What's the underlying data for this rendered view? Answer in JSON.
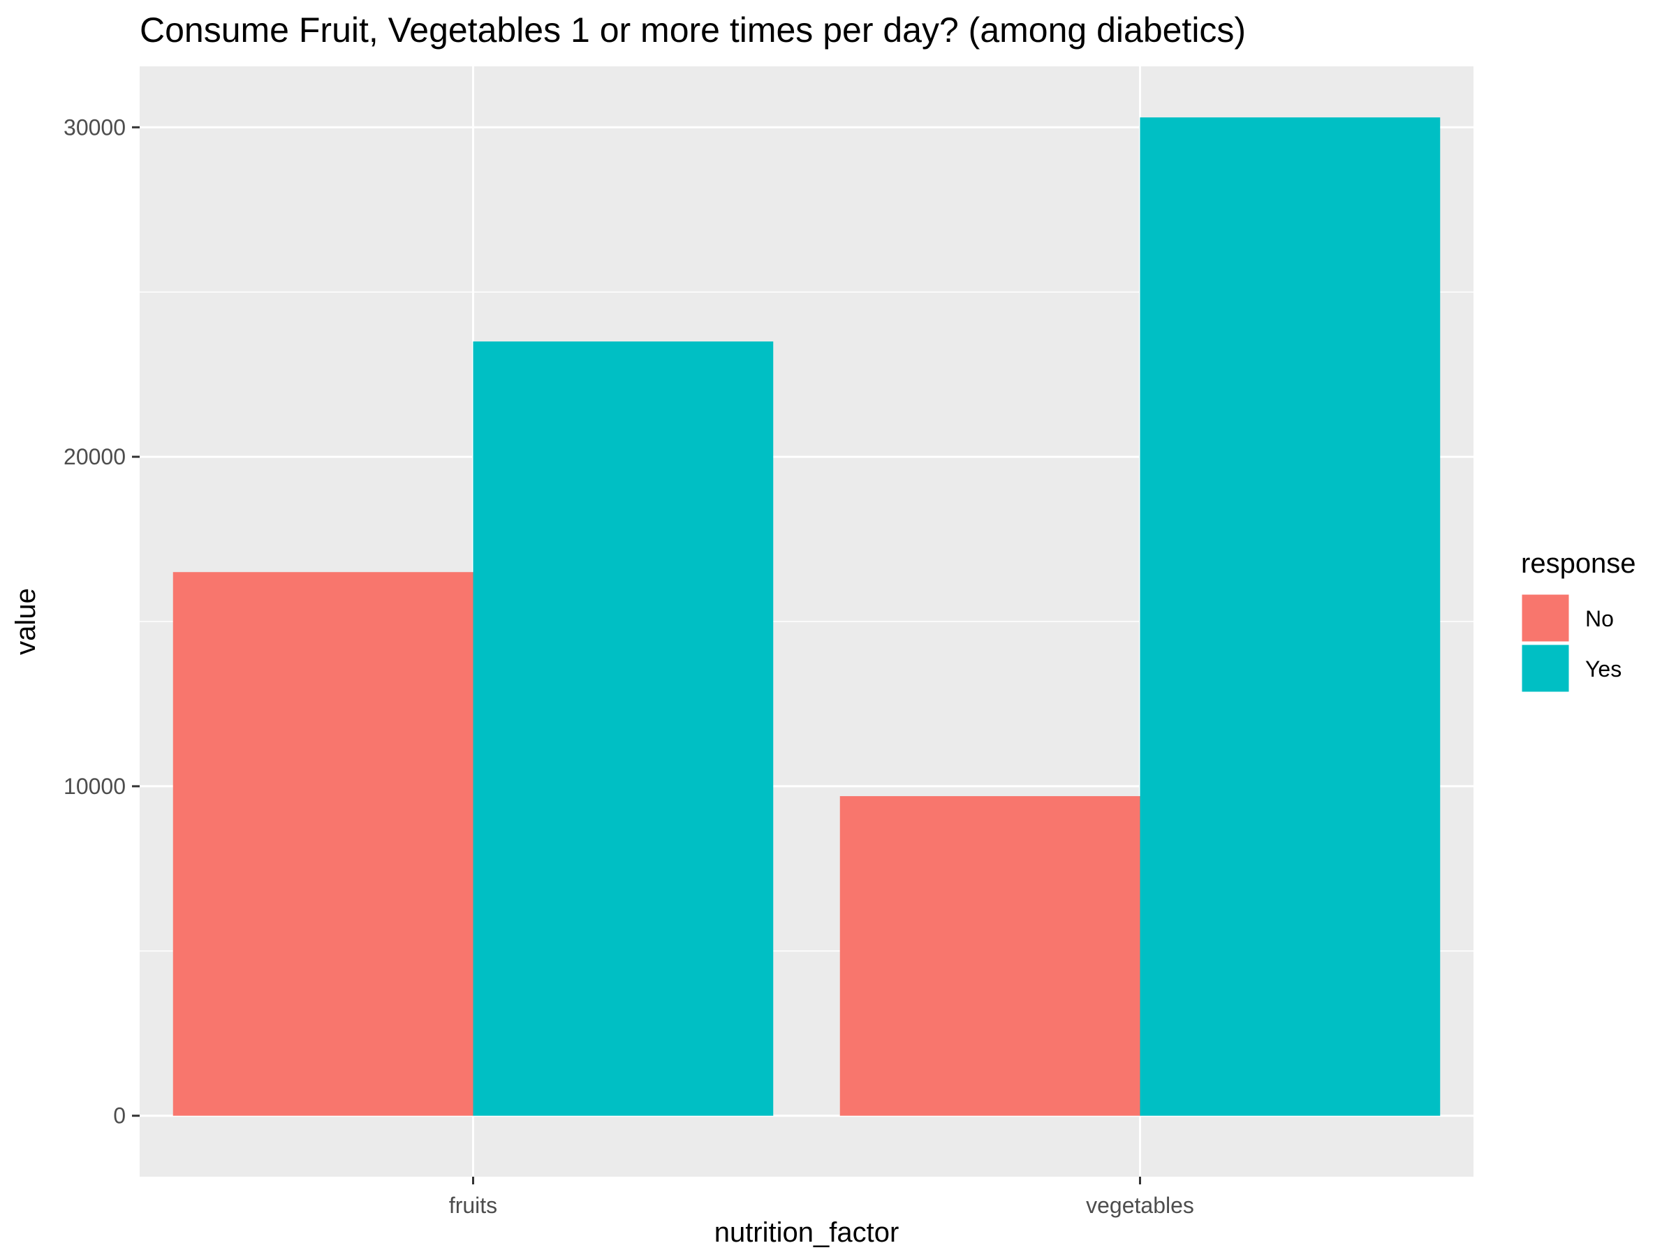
{
  "chart_data": {
    "type": "bar",
    "title": "Consume Fruit, Vegetables 1 or more times per day? (among diabetics)",
    "xlabel": "nutrition_factor",
    "ylabel": "value",
    "categories": [
      "fruits",
      "vegetables"
    ],
    "series": [
      {
        "name": "No",
        "color": "#F8766D",
        "values": [
          16500,
          9700
        ]
      },
      {
        "name": "Yes",
        "color": "#00BFC4",
        "values": [
          23500,
          30300
        ]
      }
    ],
    "ylim": [
      -1850,
      31850
    ],
    "yticks": [
      0,
      10000,
      20000,
      30000
    ],
    "ytick_labels": [
      "0",
      "10000",
      "20000",
      "30000"
    ],
    "grid": true,
    "legend": {
      "title": "response",
      "position": "right"
    },
    "colors": {
      "panel": "#EBEBEB",
      "grid": "#FFFFFF",
      "axis_text": "#4D4D4D"
    }
  }
}
